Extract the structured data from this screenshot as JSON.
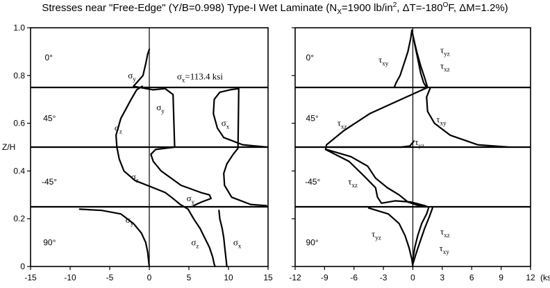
{
  "title": {
    "text_before": "Stresses near \"Free-Edge\" (Y/B=0.998) Type-I Wet Laminate (N",
    "nx_sub": "X",
    "text_mid": "=1900 lb/in",
    "in_sup": "2",
    "text_dt": ", ΔT=-180",
    "o_sup": "O",
    "text_after": "F, ΔM=1.2%)"
  },
  "chart_data": [
    {
      "type": "line",
      "panel": "left",
      "ylabel": "Z/H",
      "ylim": [
        0,
        1.0
      ],
      "xlim": [
        -15,
        15
      ],
      "yticks": [
        "0",
        "0.2",
        "0.4",
        "0.6",
        "0.8",
        "1.0"
      ],
      "xticks": [
        "-15",
        "-10",
        "-5",
        "0",
        "5",
        "10",
        "15"
      ],
      "layer_boundaries": [
        0.25,
        0.5,
        0.75
      ],
      "layer_labels": [
        {
          "text": "0°",
          "x": -13.2,
          "y": 0.875
        },
        {
          "text": "45°",
          "x": -13.4,
          "y": 0.62
        },
        {
          "text": "-45°",
          "x": -13.6,
          "y": 0.355
        },
        {
          "text": "90°",
          "x": -13.4,
          "y": 0.1
        }
      ],
      "annotation": {
        "text": "σx=113.4 ksi",
        "x": 3.5,
        "y": 0.795
      },
      "series": [
        {
          "label": "σy",
          "label_pos": [
            -2.7,
            0.8
          ],
          "x": [
            0,
            -0.2,
            -0.45,
            -0.8,
            -1.6,
            -2.0,
            -0.4,
            0.5,
            2.0,
            3.0,
            3.2,
            0.8,
            0.2,
            0.5,
            1.5,
            4.0,
            6.5,
            7.6,
            7.8,
            6.6,
            5.6
          ],
          "y": [
            0.91,
            0.89,
            0.85,
            0.8,
            0.77,
            0.755,
            0.745,
            0.74,
            0.745,
            0.72,
            0.5,
            0.49,
            0.47,
            0.44,
            0.4,
            0.34,
            0.31,
            0.3,
            0.285,
            0.27,
            0.255
          ]
        },
        {
          "label": "σy",
          "label_pos": [
            0.9,
            0.665
          ],
          "x": [],
          "y": []
        },
        {
          "label": "σy",
          "label_pos": [
            4.7,
            0.285
          ],
          "x": [],
          "y": []
        },
        {
          "label": "σx",
          "label_pos": [
            9.1,
            0.6
          ],
          "x": [
            14.9,
            11.8,
            9.4,
            8.6,
            8.1,
            8.2,
            8.9,
            10.2,
            11.3,
            11.2,
            10.6,
            9.8,
            9.4,
            9.5,
            10.4,
            12.8,
            14.8
          ],
          "y": [
            0.5,
            0.51,
            0.54,
            0.58,
            0.64,
            0.7,
            0.73,
            0.74,
            0.745,
            0.495,
            0.47,
            0.43,
            0.39,
            0.34,
            0.29,
            0.26,
            0.255
          ]
        },
        {
          "label": "σz",
          "label_pos": [
            -4.4,
            0.58
          ],
          "x": [
            -0.9,
            -1.6,
            -2.3,
            -3.6,
            -4.2,
            -4.1,
            -3.8,
            -3.2,
            -1.8,
            0.5,
            2.0,
            2.8,
            3.9,
            4.9,
            5.6,
            6.4,
            7.0,
            7.6,
            8.0,
            8.2,
            8.3
          ],
          "y": [
            0.755,
            0.74,
            0.7,
            0.62,
            0.55,
            0.5,
            0.45,
            0.4,
            0.36,
            0.33,
            0.31,
            0.29,
            0.26,
            0.24,
            0.2,
            0.16,
            0.12,
            0.08,
            0.04,
            0.01,
            0
          ]
        },
        {
          "label": "σz",
          "label_pos": [
            -2.3,
            0.375
          ],
          "x": [],
          "y": []
        },
        {
          "label": "σz",
          "label_pos": [
            5.3,
            0.1
          ],
          "x": [],
          "y": []
        },
        {
          "label": "σy",
          "label_pos": [
            -3.0,
            0.195
          ],
          "x": [
            -8.8,
            -6.0,
            -3.6,
            -2.0,
            -1.0,
            -0.45,
            -0.2,
            -0.08,
            0
          ],
          "y": [
            0.24,
            0.235,
            0.22,
            0.18,
            0.14,
            0.1,
            0.06,
            0.02,
            0
          ]
        },
        {
          "label": "σx",
          "label_pos": [
            10.6,
            0.1
          ],
          "x": [
            8.8,
            8.9,
            9.2,
            9.4,
            9.6,
            9.8
          ],
          "y": [
            0.235,
            0.2,
            0.16,
            0.12,
            0.06,
            0
          ]
        }
      ]
    },
    {
      "type": "line",
      "panel": "right",
      "ylim": [
        0,
        1.0
      ],
      "xlim": [
        -12,
        12
      ],
      "xunit": "(ksi)",
      "yticks": [
        "0",
        "0.2",
        "0.4",
        "0.6",
        "0.8",
        "1.0"
      ],
      "xticks": [
        "-12",
        "-9",
        "-6",
        "-3",
        "0",
        "3",
        "6",
        "9",
        "12"
      ],
      "layer_boundaries": [
        0.25,
        0.5,
        0.75
      ],
      "layer_labels": [
        {
          "text": "0°",
          "x": -10.9,
          "y": 0.875
        },
        {
          "text": "45°",
          "x": -10.9,
          "y": 0.62
        },
        {
          "text": "-45°",
          "x": -11.0,
          "y": 0.355
        },
        {
          "text": "90°",
          "x": -10.9,
          "y": 0.1
        }
      ],
      "series": [
        {
          "label": "τxy",
          "label_pos": [
            -3.5,
            0.865
          ],
          "x": [
            -0.1,
            -0.2,
            -0.5,
            -0.9,
            -1.3,
            -1.7,
            -1.9
          ],
          "y": [
            0.99,
            0.96,
            0.9,
            0.85,
            0.8,
            0.77,
            0.75
          ]
        },
        {
          "label": "τyz",
          "label_pos": [
            2.8,
            0.905
          ],
          "x": [
            -0.05,
            0.2,
            0.5,
            0.8,
            1.1,
            1.4
          ],
          "y": [
            0.98,
            0.93,
            0.87,
            0.81,
            0.77,
            0.75
          ]
        },
        {
          "label": "τxz",
          "label_pos": [
            2.8,
            0.84
          ],
          "x": [
            0.05,
            0.4,
            0.8,
            1.2,
            1.5
          ],
          "y": [
            0.96,
            0.9,
            0.84,
            0.79,
            0.75
          ]
        },
        {
          "label": "τxz",
          "label_pos": [
            -7.7,
            0.6
          ],
          "x": [
            1.5,
            -1.2,
            -4.4,
            -7.0,
            -8.8,
            -8.9,
            -6.5,
            -5.0,
            -3.8,
            -3.6,
            -3.2,
            -1.8,
            -0.2,
            1.2,
            1.5
          ],
          "y": [
            0.75,
            0.7,
            0.64,
            0.57,
            0.51,
            0.49,
            0.44,
            0.38,
            0.33,
            0.29,
            0.265,
            0.275,
            0.27,
            0.255,
            0.25
          ]
        },
        {
          "label": "τxz",
          "label_pos": [
            -6.6,
            0.355
          ],
          "x": [],
          "y": []
        },
        {
          "label": "τxy",
          "label_pos": [
            2.4,
            0.615
          ],
          "x": [
            1.8,
            1.4,
            1.5,
            2.2,
            3.8,
            6.6,
            9.8
          ],
          "y": [
            0.75,
            0.71,
            0.65,
            0.6,
            0.55,
            0.51,
            0.5
          ]
        },
        {
          "label": "τyz",
          "label_pos": [
            0.2,
            0.52
          ],
          "x": [
            0.1,
            -0.3,
            -1.2,
            -3.0,
            -5.6,
            -8.6
          ],
          "y": [
            0.525,
            0.505,
            0.5,
            0.5,
            0.5,
            0.5
          ]
        },
        {
          "label": "τxy",
          "label_pos": [],
          "x": [
            -8.8,
            -6.3,
            -4.6,
            -3.8,
            -2.6,
            -1.4,
            -0.5,
            0.6,
            1.2
          ],
          "y": [
            0.49,
            0.46,
            0.42,
            0.37,
            0.33,
            0.3,
            0.27,
            0.255,
            0.25
          ]
        },
        {
          "label": "τyz",
          "label_pos": [
            -4.2,
            0.135
          ],
          "x": [
            -4.5,
            -2.5,
            -1.4,
            -0.8,
            -0.4,
            -0.1,
            0
          ],
          "y": [
            0.245,
            0.22,
            0.18,
            0.13,
            0.08,
            0.03,
            0
          ]
        },
        {
          "label": "τxz",
          "label_pos": [
            2.8,
            0.145
          ],
          "x": [
            0,
            0.2,
            0.5,
            0.9,
            1.4,
            1.6
          ],
          "y": [
            0.03,
            0.08,
            0.13,
            0.18,
            0.22,
            0.245
          ]
        },
        {
          "label": "τxy",
          "label_pos": [
            2.7,
            0.075
          ],
          "x": [
            0,
            0.3,
            0.7,
            1.2,
            1.7,
            2.0
          ],
          "y": [
            0.01,
            0.05,
            0.1,
            0.16,
            0.21,
            0.245
          ]
        }
      ]
    }
  ]
}
